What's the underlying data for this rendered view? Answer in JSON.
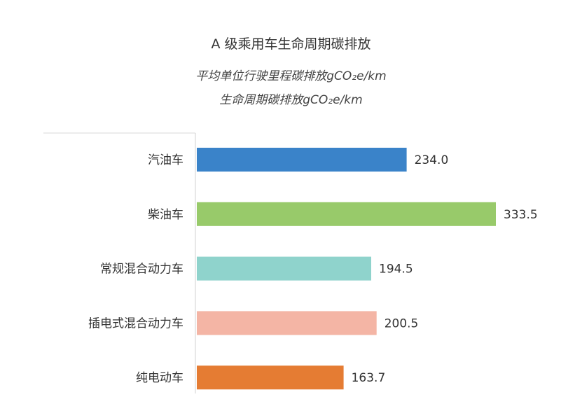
{
  "chart_data": {
    "type": "bar",
    "orientation": "horizontal",
    "title": "A 级乘用车生命周期碳排放",
    "subtitle": [
      "平均单位行驶里程碳排放gCO₂e/km",
      "生命周期碳排放gCO₂e/km"
    ],
    "categories": [
      "汽油车",
      "柴油车",
      "常规混合动力车",
      "插电式混合动力车",
      "纯电动车"
    ],
    "values": [
      234.0,
      333.5,
      194.5,
      200.5,
      163.7
    ],
    "value_labels": [
      "234.0",
      "333.5",
      "194.5",
      "200.5",
      "163.7"
    ],
    "colors": [
      "#3a83c9",
      "#98ca6a",
      "#8fd3cc",
      "#f4b5a5",
      "#e57c33"
    ],
    "xlim": [
      0,
      333.5
    ],
    "grid": false,
    "legend": "none"
  }
}
